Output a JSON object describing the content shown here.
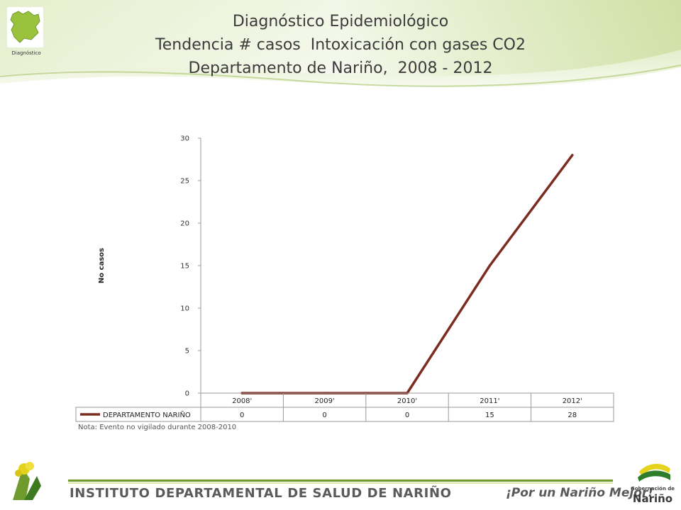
{
  "header": {
    "title_line1": "Diagnóstico Epidemiológico",
    "title_line2": "Tendencia # casos  Intoxicación con gases CO2",
    "title_line3": "Departamento de Nariño,  2008 - 2012",
    "logo_caption": "Diagnóstico"
  },
  "chart_data": {
    "type": "line",
    "categories": [
      "2008",
      "2009",
      "2010",
      "2011",
      "2012"
    ],
    "category_labels": [
      "2008'",
      "2009'",
      "2010'",
      "2011'",
      "2012'"
    ],
    "series": [
      {
        "name": "DEPARTAMENTO NARIÑO",
        "values": [
          0,
          0,
          0,
          15,
          28
        ]
      }
    ],
    "ylabel": "No  casos",
    "ylim": [
      0,
      30
    ],
    "yticks": [
      0,
      5,
      10,
      15,
      20,
      25,
      30
    ],
    "grid": false,
    "legend": "data-table-below",
    "colors": {
      "series": "#7b2c1e",
      "axis": "#999999"
    }
  },
  "note": "Nota: Evento no vigilado durante 2008-2010",
  "footer": {
    "institute": "INSTITUTO DEPARTAMENTAL DE SALUD DE NARIÑO",
    "slogan": "¡Por un Nariño Mejor!",
    "gob_line1": "Gobernación de",
    "gob_line2": "Nariño"
  },
  "colors": {
    "banner_light": "#eef4dc",
    "banner_mid": "#cfe0a4",
    "banner_dark": "#9dbb5e",
    "footer_green": "#6f9b2e"
  }
}
